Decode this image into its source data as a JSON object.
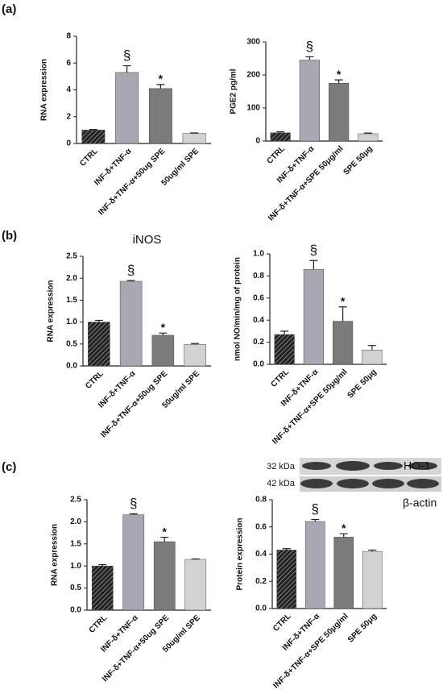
{
  "panels": [
    "(a)",
    "(b)",
    "(c)"
  ],
  "blot": {
    "kda": [
      "32 kDa",
      "42 kDa"
    ],
    "proteins": [
      "HO-1",
      "β-actin"
    ]
  },
  "chart_data": [
    {
      "type": "bar",
      "ylabel": "RNA expression",
      "categories": [
        "CTRL",
        "INF-δ+TNF-α",
        "INF-δ+TNF-α+50ug SPE",
        "50ug/ml SPE"
      ],
      "values": [
        1.0,
        5.3,
        4.1,
        0.75
      ],
      "errors": [
        0.05,
        0.5,
        0.3,
        0.03
      ],
      "annotations": [
        null,
        "§",
        "*",
        null
      ],
      "colors": [
        "#333333",
        "#a9a8b2",
        "#7b7b7b",
        "#d2d2d2"
      ],
      "hatch": [
        true,
        false,
        false,
        false
      ],
      "ylim": [
        0,
        8
      ],
      "yticks": [
        0,
        2,
        4,
        6,
        8
      ]
    },
    {
      "type": "bar",
      "ylabel": "PGE2 pg/ml",
      "categories": [
        "CTRL",
        "INF-δ+TNF-α",
        "INF-δ+TNF-α+SPE 50μg/ml",
        "SPE 50μg"
      ],
      "values": [
        25,
        245,
        175,
        22
      ],
      "errors": [
        3,
        10,
        10,
        2
      ],
      "annotations": [
        null,
        "§",
        "*",
        null
      ],
      "colors": [
        "#333333",
        "#a9a8b2",
        "#7b7b7b",
        "#d2d2d2"
      ],
      "hatch": [
        true,
        false,
        false,
        false
      ],
      "ylim": [
        0,
        300
      ],
      "yticks": [
        0,
        100,
        200,
        300
      ]
    },
    {
      "type": "bar",
      "title": "iNOS",
      "ylabel": "RNA expression",
      "categories": [
        "CTRL",
        "INF-δ+TNF-α",
        "INF-δ+TNF-α+50ug SPE",
        "50ug/ml SPE"
      ],
      "values": [
        1.0,
        1.93,
        0.7,
        0.49
      ],
      "errors": [
        0.04,
        0.02,
        0.05,
        0.02
      ],
      "annotations": [
        null,
        "§",
        "*",
        null
      ],
      "colors": [
        "#333333",
        "#a9a8b2",
        "#7b7b7b",
        "#d2d2d2"
      ],
      "hatch": [
        true,
        false,
        false,
        false
      ],
      "ylim": [
        0,
        2.5
      ],
      "yticks": [
        {
          "value": 0,
          "label": "0.0"
        },
        0.5,
        {
          "value": 1,
          "label": "1.0"
        },
        1.5,
        {
          "value": 2,
          "label": "2.0"
        },
        2.5
      ]
    },
    {
      "type": "bar",
      "ylabel": "nmol NO/min/mg of protein",
      "categories": [
        "CTRL",
        "INF-δ+TNF-α",
        "INF-δ+TNF-α+SPE 50μg/ml",
        "SPE 50μg"
      ],
      "values": [
        0.27,
        0.86,
        0.39,
        0.13
      ],
      "errors": [
        0.03,
        0.08,
        0.13,
        0.04
      ],
      "annotations": [
        null,
        "§",
        "*",
        null
      ],
      "colors": [
        "#333333",
        "#a9a8b2",
        "#7b7b7b",
        "#d2d2d2"
      ],
      "hatch": [
        true,
        false,
        false,
        false
      ],
      "ylim": [
        0,
        1
      ],
      "yticks": [
        {
          "value": 0,
          "label": "0.0"
        },
        0.2,
        0.4,
        0.6,
        0.8,
        {
          "value": 1,
          "label": "1.0"
        }
      ]
    },
    {
      "type": "bar",
      "ylabel": "RNA expression",
      "categories": [
        "CTRL",
        "INF-δ+TNF-α",
        "INF-δ+TNF-α+50ug SPE",
        "50ug/ml SPE"
      ],
      "values": [
        1.0,
        2.16,
        1.55,
        1.15
      ],
      "errors": [
        0.03,
        0.02,
        0.1,
        0.01
      ],
      "annotations": [
        null,
        "§",
        "*",
        null
      ],
      "colors": [
        "#333333",
        "#a9a8b2",
        "#7b7b7b",
        "#d2d2d2"
      ],
      "hatch": [
        true,
        false,
        false,
        false
      ],
      "ylim": [
        0,
        2.5
      ],
      "yticks": [
        {
          "value": 0,
          "label": "0.0"
        },
        0.5,
        {
          "value": 1,
          "label": "1.0"
        },
        1.5,
        {
          "value": 2,
          "label": "2.0"
        },
        2.5
      ]
    },
    {
      "type": "bar",
      "ylabel": "Protein expression",
      "categories": [
        "CTRL",
        "INF-δ+TNF-α",
        "INF-δ+TNF-α+SPE 50μg/ml",
        "SPE 50μg"
      ],
      "values": [
        0.43,
        0.64,
        0.525,
        0.42
      ],
      "errors": [
        0.01,
        0.015,
        0.025,
        0.01
      ],
      "annotations": [
        null,
        "§",
        "*",
        null
      ],
      "colors": [
        "#333333",
        "#a9a8b2",
        "#7b7b7b",
        "#d2d2d2"
      ],
      "hatch": [
        true,
        false,
        false,
        false
      ],
      "ylim": [
        0,
        0.8
      ],
      "yticks": [
        {
          "value": 0,
          "label": "0.0"
        },
        0.2,
        0.4,
        0.6,
        0.8
      ]
    }
  ]
}
